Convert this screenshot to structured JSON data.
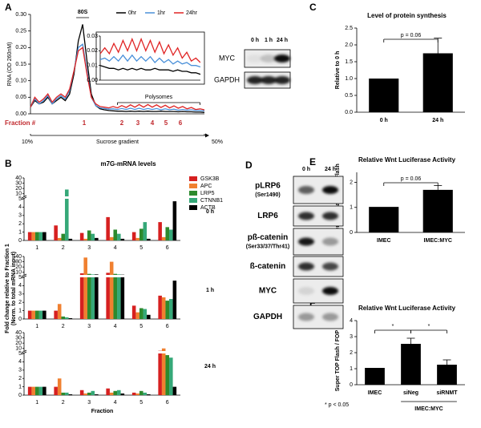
{
  "panel_labels": [
    "A",
    "B",
    "C",
    "D",
    "E",
    "F"
  ],
  "chart_data": [
    {
      "type": "line",
      "ylabel": "RNA (OD 260nM)",
      "x": [
        10,
        11,
        12,
        13,
        14,
        15,
        16,
        17,
        18,
        19,
        20,
        21,
        22,
        23,
        24,
        25,
        26,
        27,
        28,
        29,
        30,
        31,
        32,
        33,
        34,
        35,
        36,
        37,
        38,
        39,
        40,
        41,
        42,
        43,
        44,
        45,
        46,
        47,
        48,
        49,
        50
      ],
      "xlim": [
        10,
        50
      ],
      "xticks": [
        {
          "value": 10,
          "label": "10%"
        },
        {
          "value": 50,
          "label": "50%"
        }
      ],
      "xlabel": "Sucrose gradient",
      "ylim": [
        0,
        0.3
      ],
      "yticks": [
        {
          "value": 0,
          "label": "0.00"
        },
        {
          "value": 0.05,
          "label": "0.05"
        },
        {
          "value": 0.1,
          "label": "0.10"
        },
        {
          "value": 0.15,
          "label": "0.15"
        },
        {
          "value": 0.2,
          "label": "0.20"
        },
        {
          "value": 0.25,
          "label": "0.25"
        },
        {
          "value": 0.3,
          "label": "0.30"
        }
      ],
      "legend": "upper right",
      "series": [
        {
          "name": "0hr",
          "color": "#000000",
          "values": [
            0.02,
            0.04,
            0.03,
            0.035,
            0.05,
            0.03,
            0.04,
            0.05,
            0.04,
            0.06,
            0.12,
            0.22,
            0.27,
            0.16,
            0.06,
            0.025,
            0.015,
            0.012,
            0.01,
            0.009,
            0.008,
            0.008,
            0.007,
            0.008,
            0.007,
            0.008,
            0.007,
            0.008,
            0.007,
            0.007,
            0.008,
            0.007,
            0.007,
            0.007,
            0.006,
            0.007,
            0.006,
            0.006,
            0.005,
            0.005,
            0.004
          ]
        },
        {
          "name": "1hr",
          "color": "#4a90d9",
          "values": [
            0.02,
            0.045,
            0.03,
            0.04,
            0.055,
            0.03,
            0.045,
            0.055,
            0.045,
            0.07,
            0.13,
            0.2,
            0.21,
            0.13,
            0.05,
            0.025,
            0.018,
            0.016,
            0.014,
            0.015,
            0.013,
            0.016,
            0.013,
            0.017,
            0.013,
            0.017,
            0.013,
            0.016,
            0.013,
            0.016,
            0.012,
            0.015,
            0.012,
            0.014,
            0.011,
            0.013,
            0.011,
            0.012,
            0.01,
            0.01,
            0.009
          ]
        },
        {
          "name": "24hr",
          "color": "#e02424",
          "values": [
            0.02,
            0.05,
            0.035,
            0.045,
            0.06,
            0.035,
            0.05,
            0.06,
            0.05,
            0.075,
            0.13,
            0.19,
            0.2,
            0.12,
            0.05,
            0.03,
            0.022,
            0.02,
            0.018,
            0.022,
            0.018,
            0.025,
            0.019,
            0.027,
            0.02,
            0.028,
            0.02,
            0.028,
            0.02,
            0.027,
            0.019,
            0.026,
            0.018,
            0.024,
            0.017,
            0.022,
            0.015,
            0.019,
            0.013,
            0.015,
            0.012
          ]
        }
      ],
      "inset": {
        "xlim": [
          28,
          50
        ],
        "ylim": [
          0,
          0.03
        ],
        "yticks": [
          {
            "value": 0,
            "label": "0.00"
          },
          {
            "value": 0.01,
            "label": "0.01"
          },
          {
            "value": 0.02,
            "label": "0.02"
          },
          {
            "value": 0.03,
            "label": "0.03"
          }
        ]
      },
      "peak_label": "80S",
      "region_label": "Polysomes",
      "fraction_label": "Fraction #",
      "fractions": [
        "1",
        "2",
        "3",
        "4",
        "5",
        "6"
      ]
    },
    {
      "type": "broken_grouped_bar",
      "title": "m7G-mRNA levels",
      "ylabel": [
        "Fold change relative to Fraction 1",
        "(Norm. to total mRNA input)"
      ],
      "xlabel": "Fraction",
      "categories": [
        "1",
        "2",
        "3",
        "4",
        "5",
        "6"
      ],
      "panel_labels": [
        "0 h",
        "1 h",
        "24 h"
      ],
      "ylim": [
        0,
        40
      ],
      "axis_break": 5,
      "yticks": [
        0,
        1,
        2,
        3,
        4,
        5,
        10,
        20,
        30,
        40
      ],
      "series": [
        {
          "name": "GSK3B",
          "color": "#d62020",
          "values": [
            [
              1,
              1.8,
              0.9,
              2.8,
              1.0,
              2.2
            ],
            [
              1,
              1.0,
              8,
              9,
              1.6,
              2.8
            ],
            [
              1,
              1.0,
              0.6,
              0.8,
              0.3,
              5.5
            ]
          ]
        },
        {
          "name": "APC",
          "color": "#f08030",
          "values": [
            [
              1,
              0.3,
              0.2,
              0.4,
              0.3,
              0.4
            ],
            [
              1,
              1.8,
              38,
              30,
              0.8,
              2.6
            ],
            [
              1,
              2.0,
              0.2,
              0.3,
              0.2,
              10
            ]
          ]
        },
        {
          "name": "LRP5",
          "color": "#2d8a2d",
          "values": [
            [
              1,
              0.8,
              1.2,
              1.3,
              1.4,
              1.6
            ],
            [
              1,
              0.3,
              7,
              7,
              1.3,
              2.2
            ],
            [
              1,
              0.3,
              0.3,
              0.5,
              0.5,
              4.8
            ]
          ]
        },
        {
          "name": "CTNNB1",
          "color": "#35a878",
          "values": [
            [
              1,
              18,
              0.8,
              0.8,
              2.2,
              1.3
            ],
            [
              1,
              0.2,
              6,
              6,
              1.2,
              2.4
            ],
            [
              1,
              0.3,
              0.5,
              0.6,
              0.3,
              4.5
            ]
          ]
        },
        {
          "name": "ACTB",
          "color": "#000000",
          "values": [
            [
              1,
              0.2,
              0.3,
              0.2,
              0.2,
              4.7
            ],
            [
              1,
              0.1,
              6,
              5.5,
              0.5,
              4.6
            ],
            [
              1,
              0.1,
              0.1,
              0.2,
              0.1,
              1.0
            ]
          ]
        }
      ]
    },
    {
      "type": "bar",
      "title": "Level of protein synthesis",
      "ylabel": "Relative to 0 h",
      "categories": [
        "0 h",
        "24 h"
      ],
      "values": [
        1.0,
        1.75
      ],
      "errors": [
        null,
        0.45
      ],
      "color": "#000000",
      "ylim": [
        0,
        2.5
      ],
      "yticks": [
        {
          "value": 0,
          "label": "0.0"
        },
        {
          "value": 0.5,
          "label": "0.5"
        },
        {
          "value": 1,
          "label": "1.0"
        },
        {
          "value": 1.5,
          "label": "1.5"
        },
        {
          "value": 2,
          "label": "2.0"
        },
        {
          "value": 2.5,
          "label": "2.5"
        }
      ],
      "annotations": [
        "p = 0.06"
      ]
    },
    {
      "type": "bar",
      "title": "Relative Wnt Luciferase Activity",
      "ylabel": "Super TOP Flash / FOP Flash",
      "categories": [
        "IMEC",
        "IMEC:MYC"
      ],
      "values": [
        1.02,
        1.7
      ],
      "errors": [
        null,
        0.17
      ],
      "color": "#000000",
      "ylim": [
        0,
        2.4
      ],
      "yticks": [
        0,
        1,
        2
      ],
      "annotations": [
        "p = 0.06"
      ]
    },
    {
      "type": "bar",
      "title": "Relative Wnt Luciferase Activity",
      "ylabel": "Super TOP Flash / FOP Flash",
      "categories": [
        "IMEC",
        "siNeg",
        "siRNMT"
      ],
      "values": [
        1.05,
        2.55,
        1.25
      ],
      "errors": [
        null,
        0.35,
        0.3
      ],
      "color": "#000000",
      "ylim": [
        0,
        4
      ],
      "yticks": [
        0,
        1,
        2,
        3,
        4
      ],
      "annotations": [
        "*",
        "*"
      ],
      "footnote": "* p < 0.05",
      "group_label": "IMEC:MYC"
    }
  ],
  "blots": [
    {
      "lanes": [
        "0 h",
        "1 h",
        "24 h"
      ],
      "rows": [
        {
          "label": "MYC"
        },
        {
          "label": "GAPDH"
        }
      ]
    },
    {
      "lanes": [
        "0 h",
        "24 h"
      ],
      "rows": [
        {
          "label": "pLRP6",
          "sublabel": "(Ser1490)"
        },
        {
          "label": "LRP6"
        },
        {
          "label": "pß-catenin",
          "sublabel": "(Ser33/37/Thr41)"
        },
        {
          "label": "ß-catenin"
        },
        {
          "label": "MYC"
        },
        {
          "label": "GAPDH"
        }
      ]
    }
  ]
}
